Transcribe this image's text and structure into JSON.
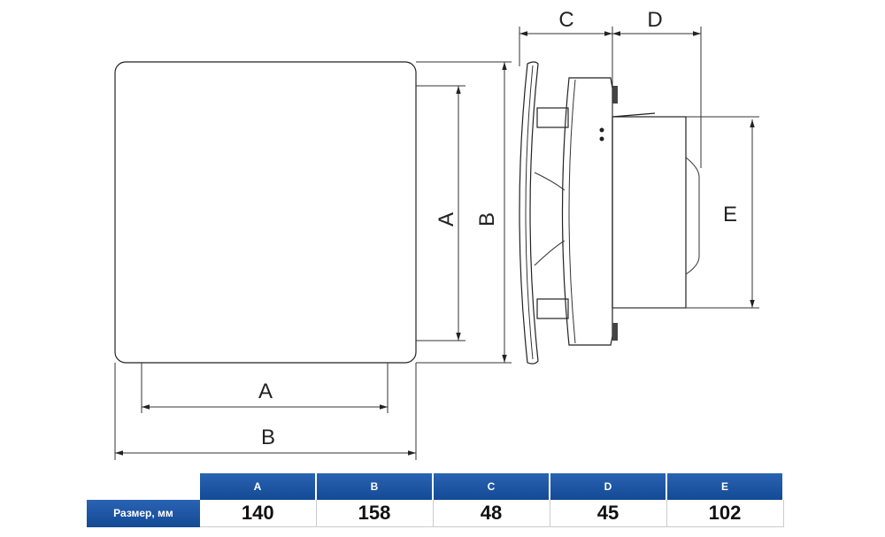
{
  "labels": {
    "A": "A",
    "B": "B",
    "C": "C",
    "D": "D",
    "E": "E"
  },
  "table": {
    "headers": [
      "A",
      "B",
      "C",
      "D",
      "E"
    ],
    "row_label": "Размер, мм",
    "values": [
      "140",
      "158",
      "48",
      "45",
      "102"
    ],
    "header_color": "#1a4f9c"
  }
}
